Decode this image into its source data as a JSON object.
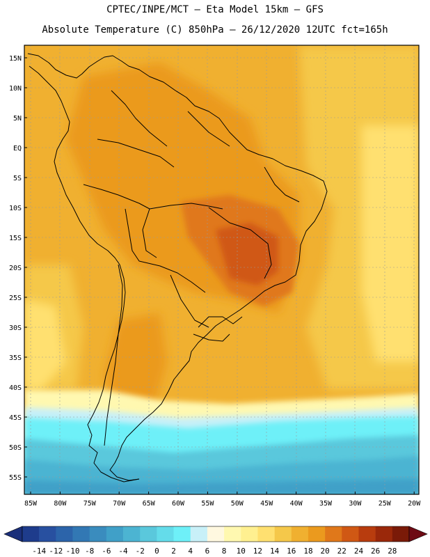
{
  "title": {
    "line1": "CPTEC/INPE/MCT –  Eta Model 15km – GFS",
    "line2": "Absolute Temperature (C) 850hPa – 26/12/2020 12UTC fct=165h"
  },
  "map": {
    "lat_labels": [
      "15N",
      "10N",
      "5N",
      "EQ",
      "5S",
      "10S",
      "15S",
      "20S",
      "25S",
      "30S",
      "35S",
      "40S",
      "45S",
      "50S",
      "55S"
    ],
    "lon_labels": [
      "85W",
      "80W",
      "75W",
      "70W",
      "65W",
      "60W",
      "55W",
      "50W",
      "45W",
      "40W",
      "35W",
      "30W",
      "25W",
      "20W"
    ],
    "lat_range": [
      -58,
      16
    ],
    "lon_range": [
      -86,
      -19
    ]
  },
  "colorbar": {
    "labels": [
      "-14",
      "-12",
      "-10",
      "-8",
      "-6",
      "-4",
      "-2",
      "0",
      "2",
      "4",
      "6",
      "8",
      "10",
      "12",
      "14",
      "16",
      "18",
      "20",
      "22",
      "24",
      "26",
      "28"
    ],
    "colors": [
      "#1e3c8c",
      "#2850a0",
      "#2c64aa",
      "#3278b4",
      "#3a8cbe",
      "#40a0c8",
      "#4cb4d2",
      "#5ac8dc",
      "#64dcea",
      "#6ef0f8",
      "#c8f0f8",
      "#fff8e0",
      "#fff8b0",
      "#fff090",
      "#ffe070",
      "#f5c84a",
      "#f0b030",
      "#eb9a1e",
      "#e0781a",
      "#d05814",
      "#b83c0e",
      "#9a280a",
      "#7a1a08"
    ],
    "min_color": "#1a2f7a",
    "max_color": "#6e0a14"
  }
}
